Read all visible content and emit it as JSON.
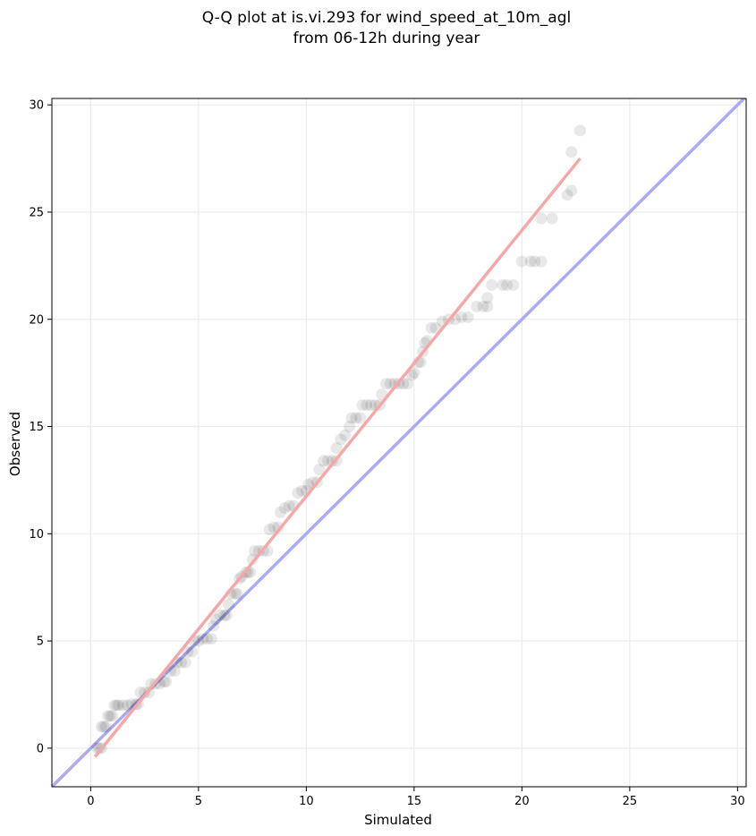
{
  "chart_data": {
    "type": "scatter",
    "title": [
      "Q-Q plot at is.vi.293 for wind_speed_at_10m_agl",
      "from 06-12h during year"
    ],
    "xlabel": "Simulated",
    "ylabel": "Observed",
    "xlim": [
      -1.8,
      30.4
    ],
    "ylim": [
      -1.8,
      30.3
    ],
    "xticks": [
      0,
      5,
      10,
      15,
      20,
      25,
      30
    ],
    "yticks": [
      0,
      5,
      10,
      15,
      20,
      25,
      30
    ],
    "grid": true,
    "marker_color": "#000000",
    "identity_line": {
      "from": [
        -1.8,
        -1.8
      ],
      "to": [
        30.4,
        30.4
      ],
      "color": "#aaaaf5"
    },
    "fit_line": {
      "from": [
        0.2,
        -0.4
      ],
      "to": [
        22.7,
        27.5
      ],
      "color": "#f5a8a8"
    },
    "points": [
      [
        0.3,
        0.0
      ],
      [
        0.4,
        0.0
      ],
      [
        0.5,
        0.0
      ],
      [
        0.5,
        1.0
      ],
      [
        0.6,
        1.0
      ],
      [
        0.7,
        1.0
      ],
      [
        0.8,
        1.5
      ],
      [
        0.9,
        1.5
      ],
      [
        1.0,
        1.5
      ],
      [
        1.1,
        2.0
      ],
      [
        1.2,
        2.0
      ],
      [
        1.3,
        2.0
      ],
      [
        1.5,
        2.0
      ],
      [
        1.7,
        2.0
      ],
      [
        1.9,
        2.05
      ],
      [
        2.1,
        2.05
      ],
      [
        2.2,
        2.05
      ],
      [
        2.3,
        2.6
      ],
      [
        2.5,
        2.6
      ],
      [
        2.7,
        2.6
      ],
      [
        2.8,
        3.0
      ],
      [
        3.0,
        3.0
      ],
      [
        3.2,
        3.0
      ],
      [
        3.4,
        3.1
      ],
      [
        3.5,
        3.1
      ],
      [
        3.7,
        3.6
      ],
      [
        3.9,
        3.6
      ],
      [
        4.0,
        4.0
      ],
      [
        4.2,
        4.0
      ],
      [
        4.4,
        4.0
      ],
      [
        4.5,
        4.5
      ],
      [
        4.7,
        4.5
      ],
      [
        4.8,
        5.0
      ],
      [
        5.0,
        5.0
      ],
      [
        5.2,
        5.1
      ],
      [
        5.4,
        5.1
      ],
      [
        5.6,
        5.1
      ],
      [
        5.7,
        5.7
      ],
      [
        5.8,
        6.0
      ],
      [
        6.0,
        6.2
      ],
      [
        6.2,
        6.2
      ],
      [
        6.3,
        6.2
      ],
      [
        6.4,
        6.7
      ],
      [
        6.5,
        7.2
      ],
      [
        6.7,
        7.2
      ],
      [
        6.8,
        7.2
      ],
      [
        6.9,
        7.9
      ],
      [
        7.0,
        8.0
      ],
      [
        7.2,
        8.2
      ],
      [
        7.3,
        8.2
      ],
      [
        7.4,
        8.2
      ],
      [
        7.5,
        8.8
      ],
      [
        7.6,
        9.2
      ],
      [
        7.8,
        9.2
      ],
      [
        8.0,
        9.2
      ],
      [
        8.2,
        9.2
      ],
      [
        8.3,
        10.2
      ],
      [
        8.5,
        10.3
      ],
      [
        8.7,
        10.3
      ],
      [
        8.8,
        11.0
      ],
      [
        9.0,
        11.2
      ],
      [
        9.2,
        11.3
      ],
      [
        9.4,
        11.3
      ],
      [
        9.6,
        11.9
      ],
      [
        9.8,
        12.0
      ],
      [
        10.0,
        12.0
      ],
      [
        10.1,
        12.3
      ],
      [
        10.3,
        12.4
      ],
      [
        10.5,
        12.4
      ],
      [
        10.6,
        13.0
      ],
      [
        10.8,
        13.4
      ],
      [
        11.0,
        13.4
      ],
      [
        11.2,
        13.4
      ],
      [
        11.4,
        13.4
      ],
      [
        11.4,
        14.0
      ],
      [
        11.6,
        14.4
      ],
      [
        11.8,
        14.6
      ],
      [
        12.0,
        15.0
      ],
      [
        12.1,
        15.4
      ],
      [
        12.3,
        15.4
      ],
      [
        12.5,
        15.4
      ],
      [
        12.6,
        16.0
      ],
      [
        12.8,
        16.0
      ],
      [
        13.0,
        16.0
      ],
      [
        13.2,
        16.0
      ],
      [
        13.4,
        16.0
      ],
      [
        13.5,
        16.5
      ],
      [
        13.7,
        17.0
      ],
      [
        13.9,
        17.0
      ],
      [
        14.1,
        17.0
      ],
      [
        14.3,
        17.0
      ],
      [
        14.5,
        17.0
      ],
      [
        14.7,
        17.0
      ],
      [
        14.9,
        17.4
      ],
      [
        15.0,
        17.5
      ],
      [
        15.2,
        18.0
      ],
      [
        15.3,
        18.0
      ],
      [
        15.4,
        18.5
      ],
      [
        15.5,
        18.9
      ],
      [
        15.6,
        19.0
      ],
      [
        15.8,
        19.6
      ],
      [
        16.0,
        19.6
      ],
      [
        16.3,
        19.9
      ],
      [
        16.6,
        20.0
      ],
      [
        16.9,
        20.0
      ],
      [
        17.2,
        20.1
      ],
      [
        17.5,
        20.1
      ],
      [
        17.9,
        20.6
      ],
      [
        18.2,
        20.6
      ],
      [
        18.4,
        20.6
      ],
      [
        18.4,
        21.0
      ],
      [
        18.6,
        21.6
      ],
      [
        19.1,
        21.6
      ],
      [
        19.3,
        21.6
      ],
      [
        19.6,
        21.6
      ],
      [
        20.0,
        22.7
      ],
      [
        20.4,
        22.7
      ],
      [
        20.6,
        22.7
      ],
      [
        20.9,
        22.7
      ],
      [
        20.9,
        24.7
      ],
      [
        21.4,
        24.7
      ],
      [
        22.1,
        25.8
      ],
      [
        22.3,
        26.0
      ],
      [
        22.3,
        27.8
      ],
      [
        22.7,
        28.8
      ]
    ]
  }
}
